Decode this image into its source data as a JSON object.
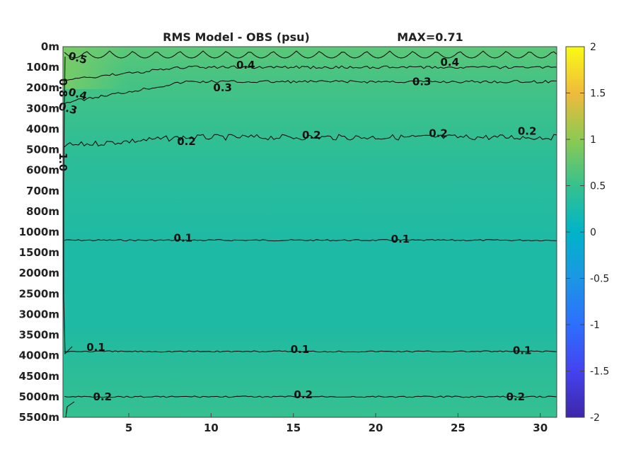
{
  "chart_data": {
    "type": "heatmap",
    "title": "RMS Model - OBS (psu)",
    "max_label": "MAX=0.71",
    "xlabel": "",
    "ylabel": "",
    "x_ticks": [
      5,
      10,
      15,
      20,
      25,
      30
    ],
    "xlim": [
      1,
      31
    ],
    "y_tick_labels": [
      "0m",
      "100m",
      "200m",
      "300m",
      "400m",
      "500m",
      "600m",
      "700m",
      "800m",
      "1000m",
      "1500m",
      "2000m",
      "2500m",
      "3000m",
      "3500m",
      "4000m",
      "4500m",
      "5000m",
      "5500m"
    ],
    "colorbar": {
      "range": [
        -2,
        2
      ],
      "ticks": [
        "2",
        "1.5",
        "1",
        "0.5",
        "0",
        "-0.5",
        "-1",
        "-1.5",
        "-2"
      ],
      "colormap": "parula"
    },
    "contours": [
      {
        "level": "0.5",
        "depth_index": 0.4
      },
      {
        "level": "0.4",
        "depth_index": 1.0
      },
      {
        "level": "0.3",
        "depth_index": 1.7
      },
      {
        "level": "0.2",
        "depth_index": 4.4
      },
      {
        "level": "0.1",
        "depth_index": 9.4
      },
      {
        "level": "0.1",
        "depth_index": 14.8
      },
      {
        "level": "0.2",
        "depth_index": 17.0
      }
    ],
    "contour_labels": [
      {
        "text": "0.5",
        "x": 1.9,
        "d": 0.55
      },
      {
        "text": "0.4",
        "x": 12.1,
        "d": 0.9
      },
      {
        "text": "0.4",
        "x": 24.5,
        "d": 0.75
      },
      {
        "text": "0.4",
        "x": 1.9,
        "d": 2.3
      },
      {
        "text": "0.3",
        "x": 10.7,
        "d": 2.0
      },
      {
        "text": "0.3",
        "x": 22.8,
        "d": 1.7
      },
      {
        "text": "0.3",
        "x": 1.3,
        "d": 3.0
      },
      {
        "text": "0.8",
        "x": 1.0,
        "d": 2.0
      },
      {
        "text": "0.2",
        "x": 8.5,
        "d": 4.6
      },
      {
        "text": "0.2",
        "x": 16.1,
        "d": 4.3
      },
      {
        "text": "0.2",
        "x": 23.8,
        "d": 4.2
      },
      {
        "text": "0.2",
        "x": 29.2,
        "d": 4.1
      },
      {
        "text": "1.0",
        "x": 1.0,
        "d": 5.6
      },
      {
        "text": "0.1",
        "x": 8.3,
        "d": 9.3
      },
      {
        "text": "0.1",
        "x": 21.5,
        "d": 9.35
      },
      {
        "text": "0.1",
        "x": 3.0,
        "d": 14.6
      },
      {
        "text": "0.1",
        "x": 15.4,
        "d": 14.7
      },
      {
        "text": "0.1",
        "x": 28.9,
        "d": 14.75
      },
      {
        "text": "0.2",
        "x": 3.4,
        "d": 17.0
      },
      {
        "text": "0.2",
        "x": 15.6,
        "d": 16.9
      },
      {
        "text": "0.2",
        "x": 28.5,
        "d": 17.0
      }
    ]
  }
}
